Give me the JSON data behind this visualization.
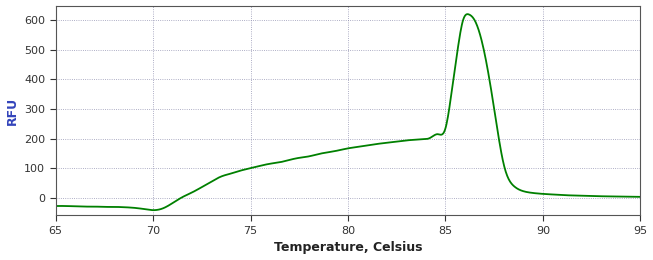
{
  "title": "",
  "xlabel": "Temperature, Celsius",
  "ylabel": "RFU",
  "line_color": "#008000",
  "line_width": 1.3,
  "background_color": "#ffffff",
  "grid_color": "#8888aa",
  "grid_dot_size": 0.5,
  "xlim": [
    65,
    95
  ],
  "ylim": [
    -60,
    650
  ],
  "xticks": [
    65,
    70,
    75,
    80,
    85,
    90,
    95
  ],
  "yticks": [
    0,
    100,
    200,
    300,
    400,
    500,
    600
  ],
  "xlabel_color": "#222222",
  "ylabel_color": "#3344bb",
  "xtick_color": "#333333",
  "ytick_color": "#333333",
  "spine_color": "#555555",
  "curve_points": {
    "x": [
      65.0,
      65.5,
      66.0,
      66.5,
      67.0,
      67.5,
      68.0,
      68.5,
      69.0,
      69.5,
      70.0,
      70.5,
      71.0,
      71.5,
      72.0,
      72.5,
      73.0,
      73.5,
      74.0,
      74.5,
      75.0,
      75.5,
      76.0,
      76.5,
      77.0,
      77.5,
      78.0,
      78.5,
      79.0,
      79.5,
      80.0,
      80.5,
      81.0,
      81.5,
      82.0,
      82.5,
      83.0,
      83.4,
      83.8,
      84.2,
      84.6,
      85.0,
      85.3,
      85.6,
      85.9,
      86.2,
      86.5,
      87.0,
      87.5,
      88.0,
      88.5,
      89.0,
      89.5,
      90.0,
      90.5,
      91.0,
      92.0,
      93.0,
      94.0,
      95.0
    ],
    "y": [
      -28,
      -28,
      -29,
      -30,
      -30,
      -31,
      -31,
      -32,
      -34,
      -38,
      -42,
      -36,
      -18,
      2,
      18,
      36,
      55,
      72,
      82,
      92,
      100,
      108,
      115,
      120,
      128,
      135,
      140,
      148,
      154,
      160,
      167,
      172,
      177,
      182,
      186,
      190,
      194,
      196,
      198,
      202,
      215,
      235,
      350,
      490,
      600,
      620,
      600,
      490,
      300,
      110,
      40,
      22,
      16,
      13,
      11,
      9,
      7,
      5,
      4,
      3
    ]
  }
}
